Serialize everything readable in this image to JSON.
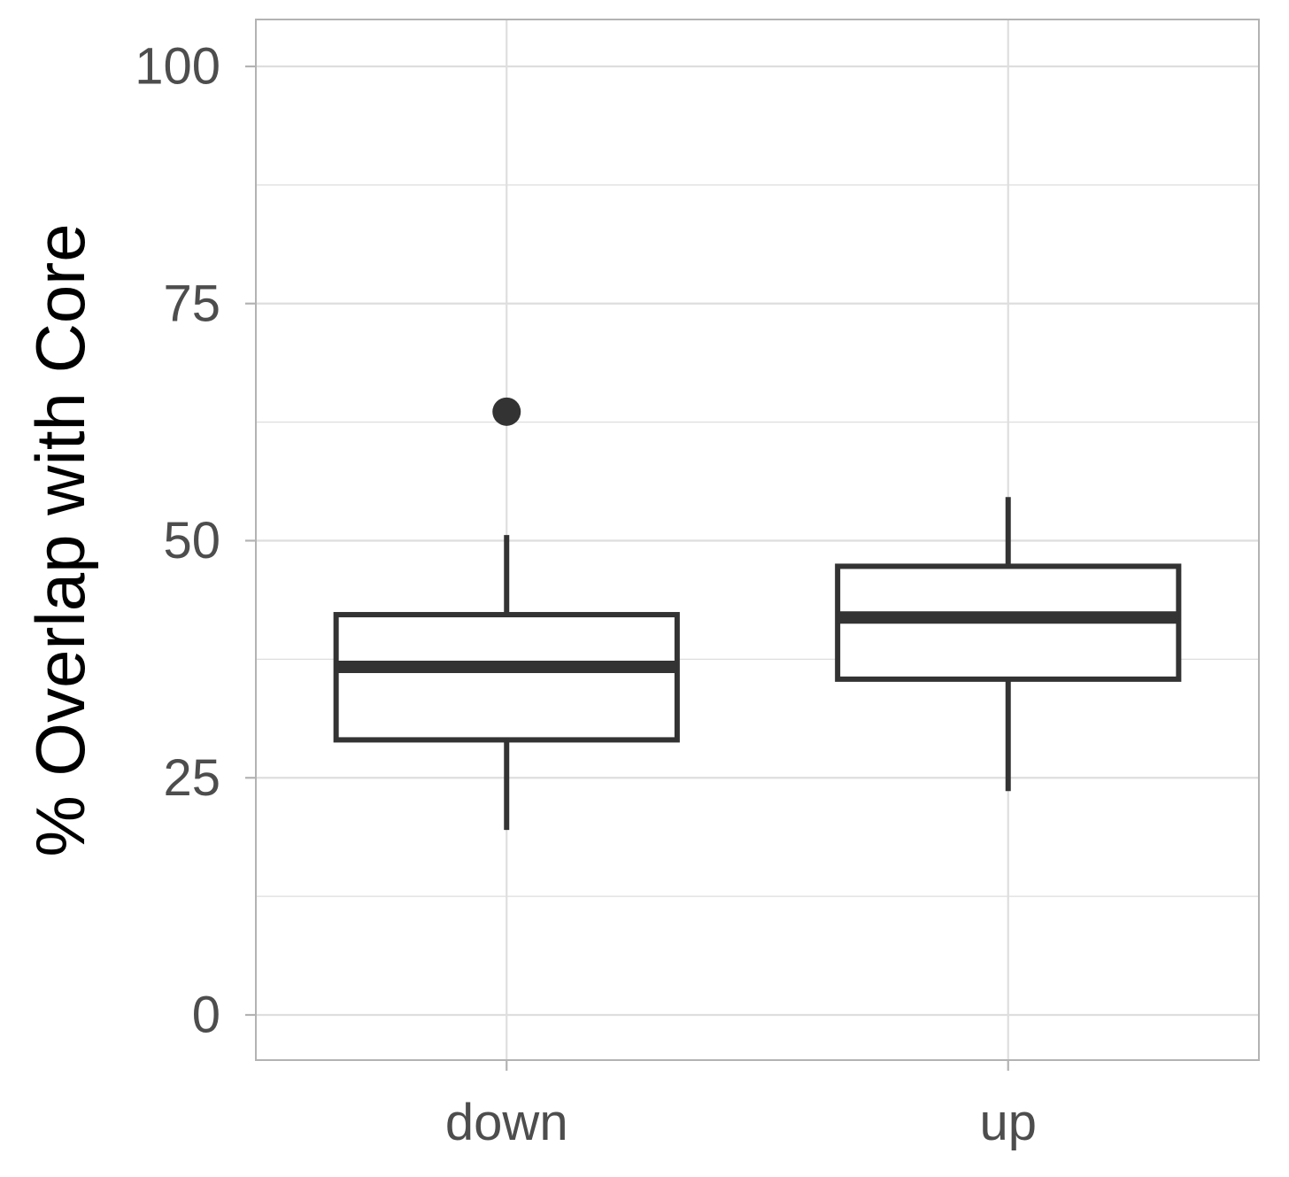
{
  "chart_data": {
    "type": "box",
    "title": "",
    "xlabel": "",
    "ylabel": "% Overlap with Core",
    "ylim": [
      -4.5,
      105
    ],
    "y_ticks": [
      0,
      25,
      50,
      75,
      100
    ],
    "y_tick_labels": [
      "0",
      "25",
      "50",
      "75",
      "100"
    ],
    "grid": true,
    "categories": [
      "down",
      "up"
    ],
    "boxes": [
      {
        "category": "down",
        "whisker_low": 19.5,
        "q1": 29.0,
        "median": 36.7,
        "q3": 42.2,
        "whisker_high": 50.6,
        "outliers": [
          63.6
        ]
      },
      {
        "category": "up",
        "whisker_low": 23.6,
        "q1": 35.4,
        "median": 41.9,
        "q3": 47.3,
        "whisker_high": 54.6,
        "outliers": []
      }
    ],
    "colors": {
      "box_stroke": "#333333",
      "grid": "#dedede",
      "panel_border": "#b3b3b3",
      "tick_text": "#4d4d4d"
    }
  }
}
